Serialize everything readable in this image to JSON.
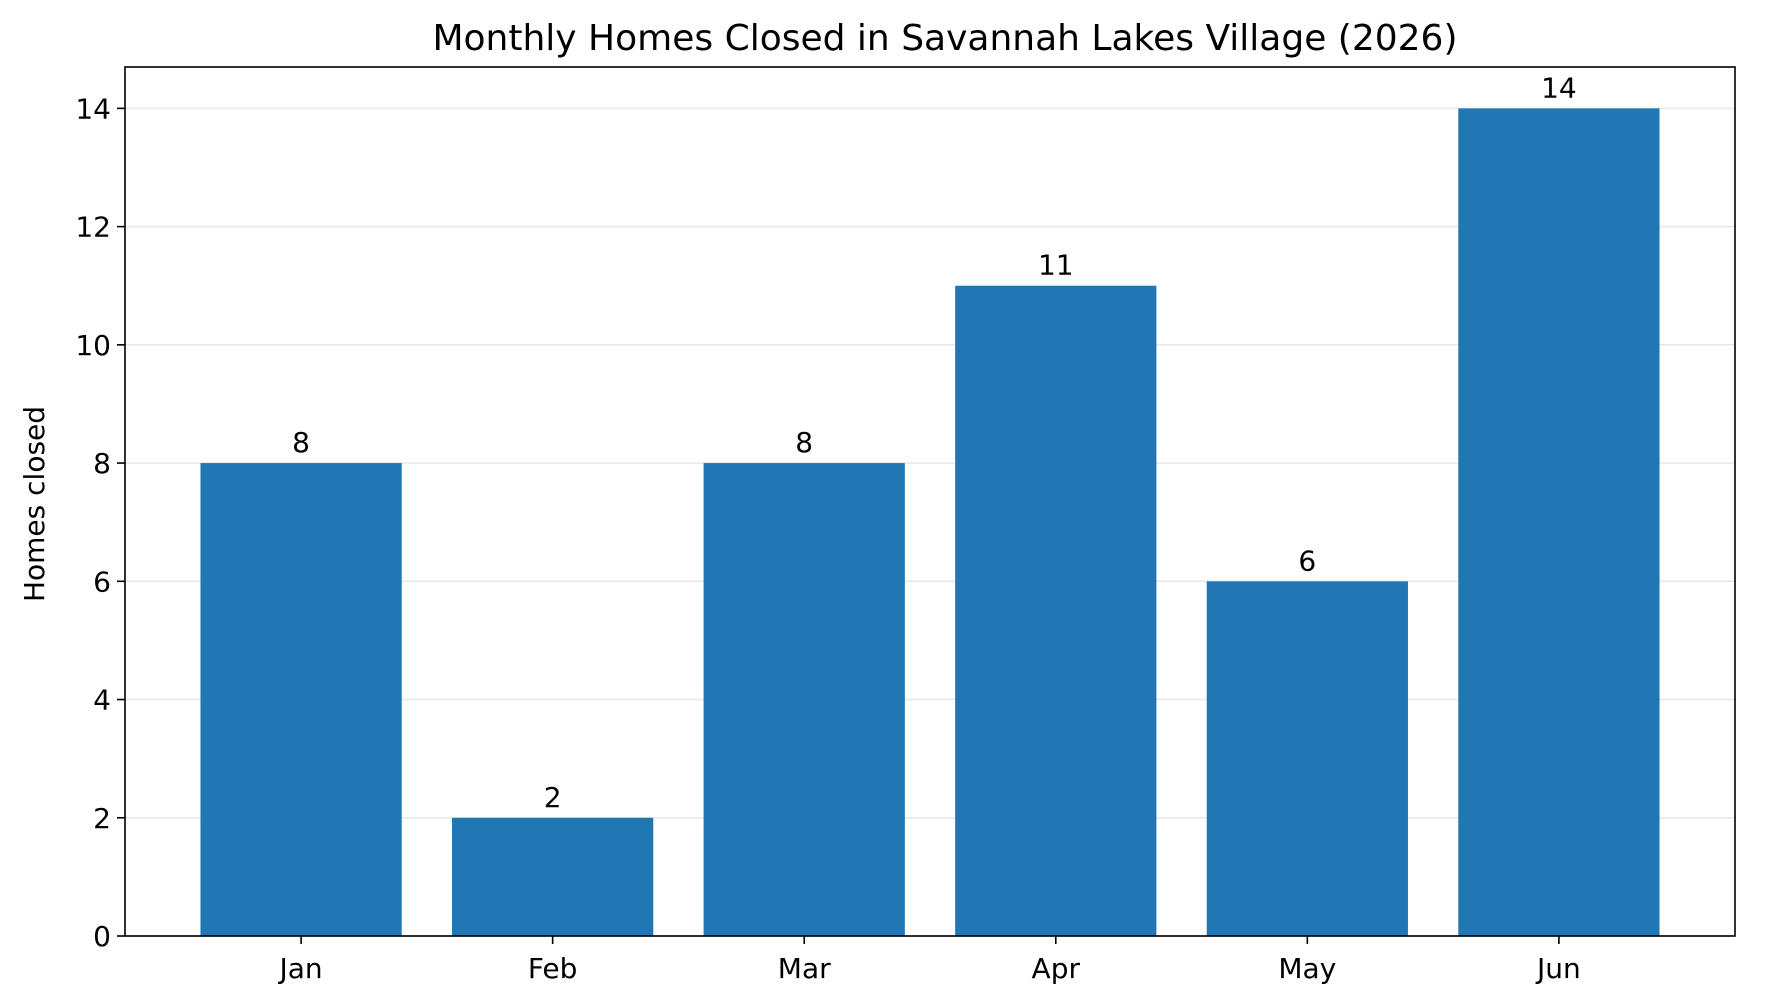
{
  "chart_data": {
    "type": "bar",
    "title": "Monthly Homes Closed in Savannah Lakes Village (2026)",
    "xlabel": "",
    "ylabel": "Homes closed",
    "categories": [
      "Jan",
      "Feb",
      "Mar",
      "Apr",
      "May",
      "Jun"
    ],
    "values": [
      8,
      2,
      8,
      11,
      6,
      14
    ],
    "ylim": [
      0,
      14.7
    ],
    "yticks": [
      0,
      2,
      4,
      6,
      8,
      10,
      12,
      14
    ],
    "grid": "horizontal",
    "bar_color": "#2077b4",
    "grid_color": "#e8e8e8",
    "data_labels": true
  }
}
